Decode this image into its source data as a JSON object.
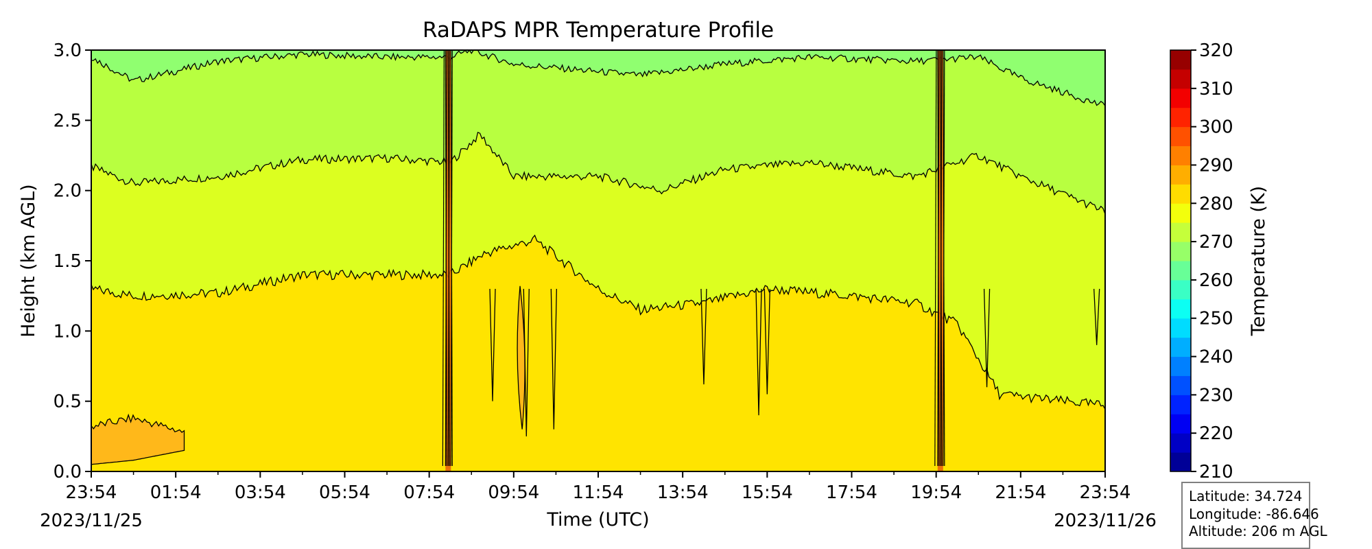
{
  "chart_data": {
    "type": "heatmap",
    "subtype": "filled-contour",
    "title": "RaDAPS MPR Temperature Profile",
    "xlabel": "Time (UTC)",
    "ylabel": "Height (km AGL)",
    "x_tick_labels": [
      "23:54",
      "01:54",
      "03:54",
      "05:54",
      "07:54",
      "09:54",
      "11:54",
      "13:54",
      "15:54",
      "17:54",
      "19:54",
      "21:54",
      "23:54"
    ],
    "x_start_date": "2023/11/25",
    "x_end_date": "2023/11/26",
    "xlim_hours_since_start": [
      0,
      24
    ],
    "ylim": [
      0,
      3.0
    ],
    "y_ticks": [
      0.0,
      0.5,
      1.0,
      1.5,
      2.0,
      2.5,
      3.0
    ],
    "colorbar": {
      "label": "Temperature (K)",
      "range": [
        210,
        320
      ],
      "ticks": [
        210,
        220,
        230,
        240,
        250,
        260,
        270,
        280,
        290,
        300,
        310,
        320
      ],
      "level_step": 5,
      "colormap": "jet"
    },
    "contour_boundaries_km": {
      "265K": [
        [
          0,
          2.95
        ],
        [
          1,
          2.78
        ],
        [
          3,
          2.92
        ],
        [
          5,
          2.97
        ],
        [
          7,
          2.95
        ],
        [
          8.5,
          2.95
        ],
        [
          9,
          3.0
        ],
        [
          10,
          2.9
        ],
        [
          13,
          2.82
        ],
        [
          15,
          2.9
        ],
        [
          17,
          2.95
        ],
        [
          19.5,
          2.92
        ],
        [
          21,
          2.95
        ],
        [
          22,
          2.8
        ],
        [
          24,
          2.6
        ]
      ],
      "270K": [
        [
          0,
          2.17
        ],
        [
          1,
          2.05
        ],
        [
          3,
          2.1
        ],
        [
          5,
          2.22
        ],
        [
          7,
          2.23
        ],
        [
          8.5,
          2.2
        ],
        [
          9.2,
          2.4
        ],
        [
          10,
          2.1
        ],
        [
          12,
          2.1
        ],
        [
          13.5,
          2.0
        ],
        [
          15,
          2.15
        ],
        [
          17,
          2.2
        ],
        [
          19.5,
          2.1
        ],
        [
          21,
          2.25
        ],
        [
          22,
          2.1
        ],
        [
          24,
          1.85
        ]
      ],
      "275K": [
        [
          0,
          1.3
        ],
        [
          1,
          1.25
        ],
        [
          3,
          1.27
        ],
        [
          5,
          1.4
        ],
        [
          7,
          1.4
        ],
        [
          8.5,
          1.4
        ],
        [
          9.3,
          1.55
        ],
        [
          10.5,
          1.65
        ],
        [
          12,
          1.3
        ],
        [
          13,
          1.15
        ],
        [
          14.5,
          1.2
        ],
        [
          16,
          1.3
        ],
        [
          18,
          1.25
        ],
        [
          19.5,
          1.2
        ],
        [
          20.5,
          1.05
        ],
        [
          21.5,
          0.55
        ],
        [
          23,
          0.5
        ],
        [
          24,
          0.47
        ]
      ],
      "280K": [
        [
          0,
          0.32
        ],
        [
          1,
          0.38
        ],
        [
          2.2,
          0.28
        ],
        [
          2.2,
          0.15
        ],
        [
          1,
          0.08
        ],
        [
          0,
          0.05
        ]
      ]
    },
    "colors": {
      "t265": "#90ff70",
      "t270": "#b8ff40",
      "t275": "#dcff20",
      "t280": "#ffe400",
      "t285": "#ffb81a"
    }
  },
  "info_box": {
    "latitude": "Latitude: 34.724",
    "longitude": "Longitude: -86.646",
    "altitude": "Altitude: 206 m AGL"
  }
}
